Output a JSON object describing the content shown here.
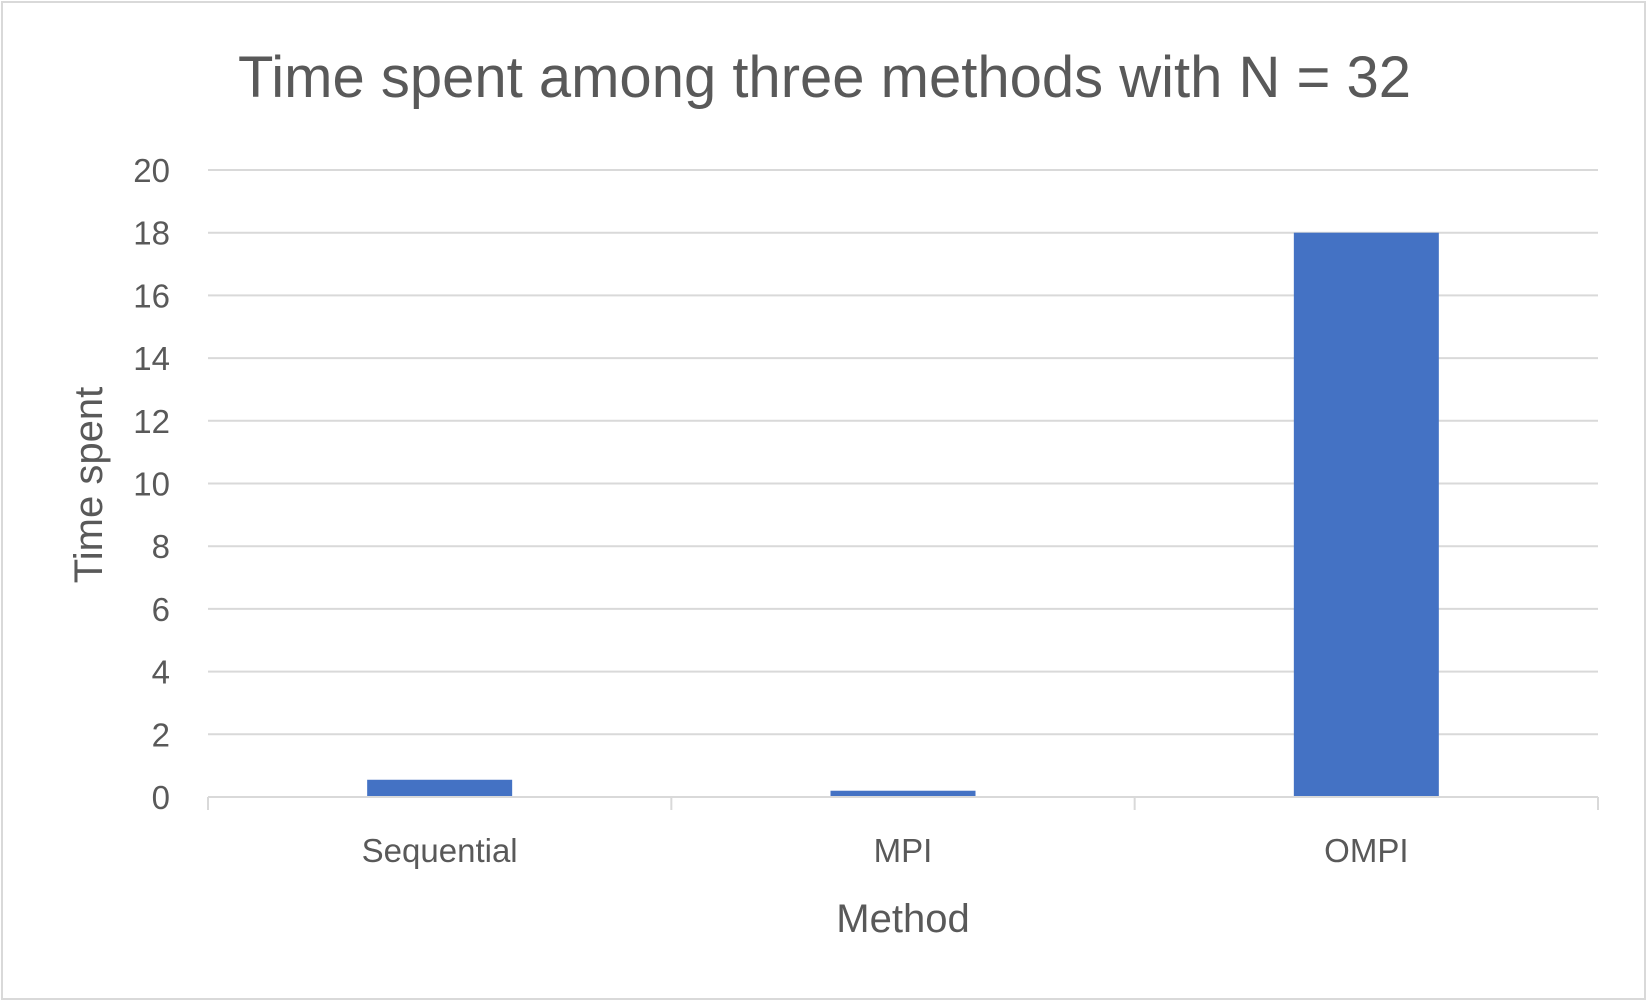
{
  "chart_data": {
    "type": "bar",
    "title": "Time spent among three methods with N = 32",
    "xlabel": "Method",
    "ylabel": "Time spent",
    "categories": [
      "Sequential",
      "MPI",
      "OMPI"
    ],
    "values": [
      0.55,
      0.2,
      18
    ],
    "ylim": [
      0,
      20
    ],
    "yticks": [
      0,
      2,
      4,
      6,
      8,
      10,
      12,
      14,
      16,
      18,
      20
    ],
    "grid": true,
    "legend": "none",
    "bar_color": "#4472C4",
    "gridline_color": "#d9d9d9",
    "text_color": "#595959"
  }
}
